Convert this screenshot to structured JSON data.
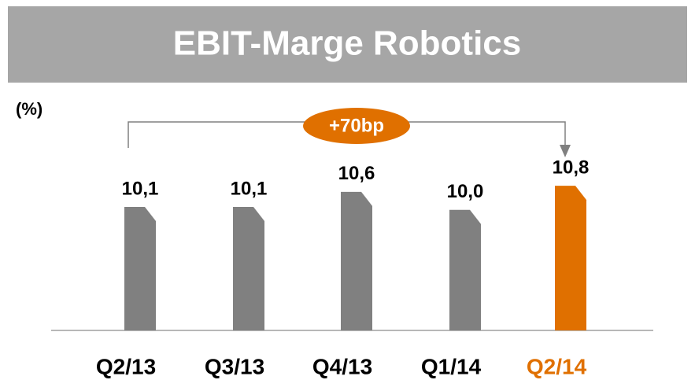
{
  "chart_data": {
    "type": "bar",
    "title": "EBIT-Marge Robotics",
    "unit_label": "(%)",
    "categories": [
      "Q2/13",
      "Q3/13",
      "Q4/13",
      "Q1/14",
      "Q2/14"
    ],
    "values": [
      10.1,
      10.1,
      10.6,
      10.0,
      10.8
    ],
    "value_labels": [
      "10,1",
      "10,1",
      "10,6",
      "10,0",
      "10,8"
    ],
    "color": "#808080",
    "colors": [
      "#808080",
      "#808080",
      "#808080",
      "#808080",
      "#e07000"
    ],
    "ylim": [
      6,
      16
    ],
    "annotation": "+70bp",
    "annotation_color": "#e07000"
  }
}
